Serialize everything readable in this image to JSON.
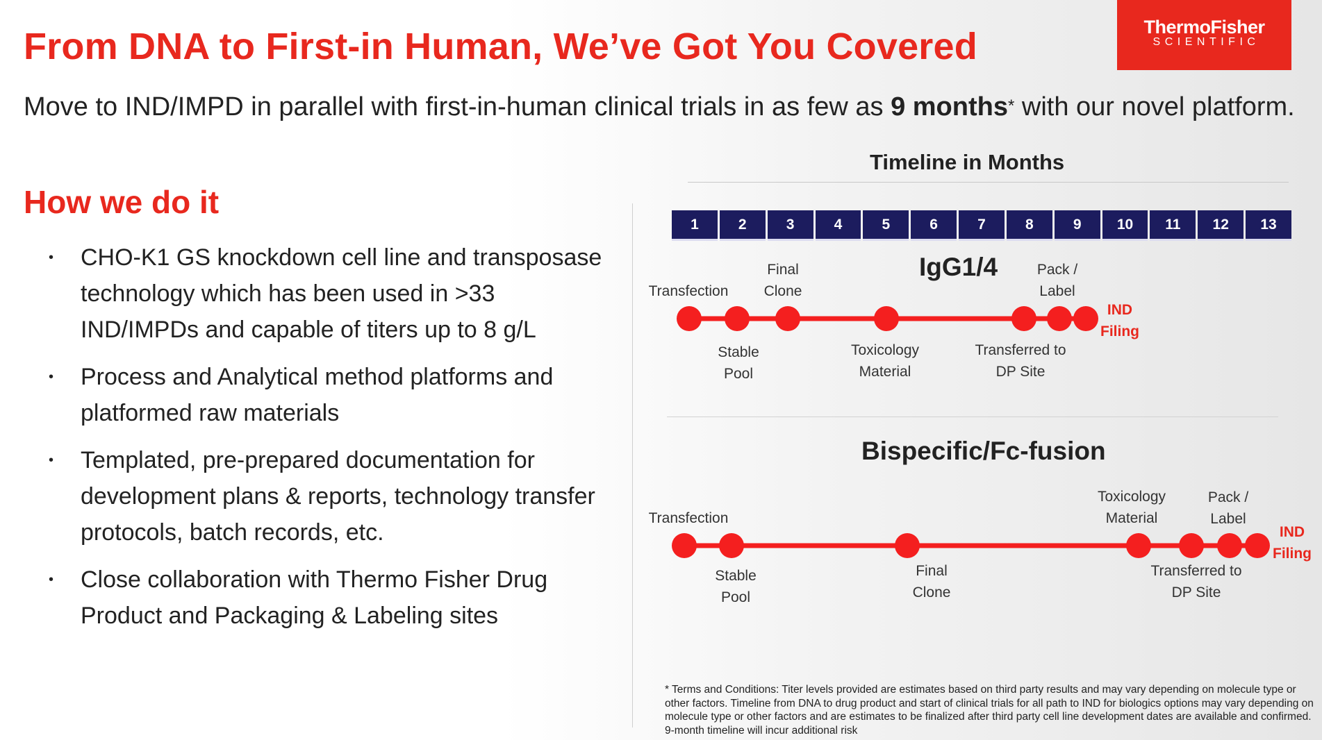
{
  "title": "From DNA to First-in Human, We’ve Got You Covered",
  "logo": {
    "line1": "ThermoFisher",
    "line2": "SCIENTIFIC"
  },
  "intro": {
    "before": "Move to IND/IMPD in parallel with first-in-human clinical trials in as few as ",
    "bold": "9 months",
    "star": "*",
    "after": " with our novel platform."
  },
  "how_heading": "How we do it",
  "bullets": [
    "CHO-K1 GS knockdown cell line and transposase technology which has been used in >33 IND/IMPDs and capable of titers up to 8 g/L",
    "Process and Analytical method platforms and platformed raw materials",
    "Templated, pre-prepared documentation for development plans & reports, technology transfer protocols, batch records, etc.",
    "Close collaboration with Thermo Fisher Drug Product and Packaging & Labeling sites"
  ],
  "bullet_marker": "•",
  "timeline_heading": "Timeline in Months",
  "months": [
    "1",
    "2",
    "3",
    "4",
    "5",
    "6",
    "7",
    "8",
    "9",
    "10",
    "11",
    "12",
    "13"
  ],
  "igg": {
    "title": "IgG1/4",
    "labels": {
      "transfection": "Transfection",
      "final_clone_1": "Final",
      "final_clone_2": "Clone",
      "pack_1": "Pack /",
      "pack_2": "Label",
      "ind_1": "IND",
      "ind_2": "Filing",
      "stable_1": "Stable",
      "stable_2": "Pool",
      "tox_1": "Toxicology",
      "tox_2": "Material",
      "transfer_1": "Transferred to",
      "transfer_2": "DP Site"
    }
  },
  "bispecific": {
    "title": "Bispecific/Fc-fusion",
    "labels": {
      "transfection": "Transfection",
      "tox_1": "Toxicology",
      "tox_2": "Material",
      "pack_1": "Pack /",
      "pack_2": "Label",
      "ind_1": "IND",
      "ind_2": "Filing",
      "stable_1": "Stable",
      "stable_2": "Pool",
      "final_clone_1": "Final",
      "final_clone_2": "Clone",
      "transfer_1": "Transferred to",
      "transfer_2": "DP Site"
    }
  },
  "footnote": "* Terms and Conditions: Titer levels provided are estimates based on third party results and may vary depending on molecule type or other factors. Timeline from DNA to drug product and start of clinical trials for all path to IND for biologics options may vary depending on molecule type or other factors and are estimates to be finalized after third party cell line development dates are available and confirmed. 9-month timeline will incur additional risk",
  "colors": {
    "accent": "#e8281e",
    "month_bar": "#1c1c5e",
    "dot": "#f41f1f"
  }
}
